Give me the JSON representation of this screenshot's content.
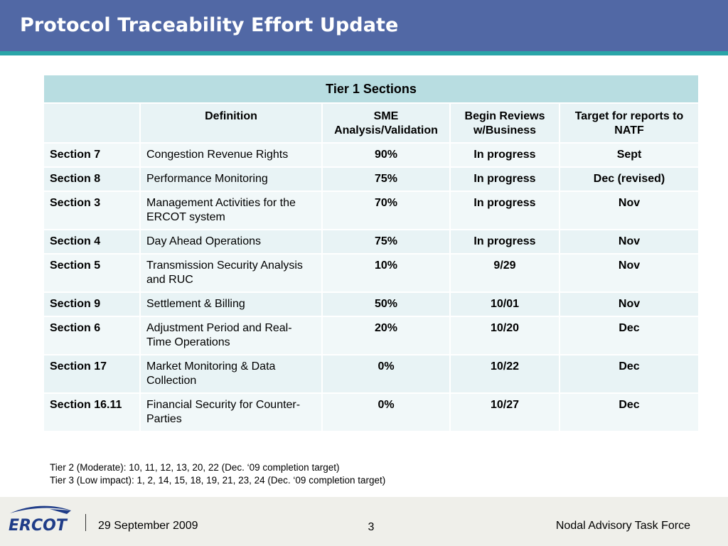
{
  "header": {
    "title": "Protocol Traceability Effort Update"
  },
  "table": {
    "caption": "Tier 1 Sections",
    "columns": [
      "",
      "Definition",
      "SME Analysis/Validation",
      "Begin Reviews w/Business",
      "Target for reports to NATF"
    ],
    "rows": [
      [
        "Section 7",
        "Congestion Revenue Rights",
        "90%",
        "In progress",
        "Sept"
      ],
      [
        "Section 8",
        "Performance Monitoring",
        "75%",
        "In progress",
        "Dec (revised)"
      ],
      [
        "Section 3",
        "Management Activities for the ERCOT system",
        "70%",
        "In progress",
        "Nov"
      ],
      [
        "Section 4",
        "Day Ahead Operations",
        "75%",
        "In progress",
        "Nov"
      ],
      [
        "Section 5",
        "Transmission Security Analysis and RUC",
        "10%",
        "9/29",
        "Nov"
      ],
      [
        "Section 9",
        "Settlement & Billing",
        "50%",
        "10/01",
        "Nov"
      ],
      [
        "Section 6",
        "Adjustment Period and Real-Time Operations",
        "20%",
        "10/20",
        "Dec"
      ],
      [
        "Section 17",
        "Market Monitoring & Data Collection",
        "0%",
        "10/22",
        "Dec"
      ],
      [
        "Section 16.11",
        "Financial Security for Counter-Parties",
        "0%",
        "10/27",
        "Dec"
      ]
    ]
  },
  "notes": [
    "Tier 2 (Moderate): 10, 11, 12, 13, 20, 22 (Dec. ‘09 completion target)",
    "Tier 3 (Low impact): 1, 2, 14, 15, 18, 19, 21, 23, 24 (Dec. ‘09 completion target)"
  ],
  "footer": {
    "logo_text": "ERCOT",
    "date": "29 September 2009",
    "page": "3",
    "org": "Nodal Advisory Task Force"
  },
  "colors": {
    "header": "#5168a5",
    "stripe": "#2aa5a8",
    "tier_header": "#b8dde1",
    "row_light": "#f1f8f9",
    "row_dark": "#e8f3f5",
    "logo_blue": "#1f3c88"
  }
}
